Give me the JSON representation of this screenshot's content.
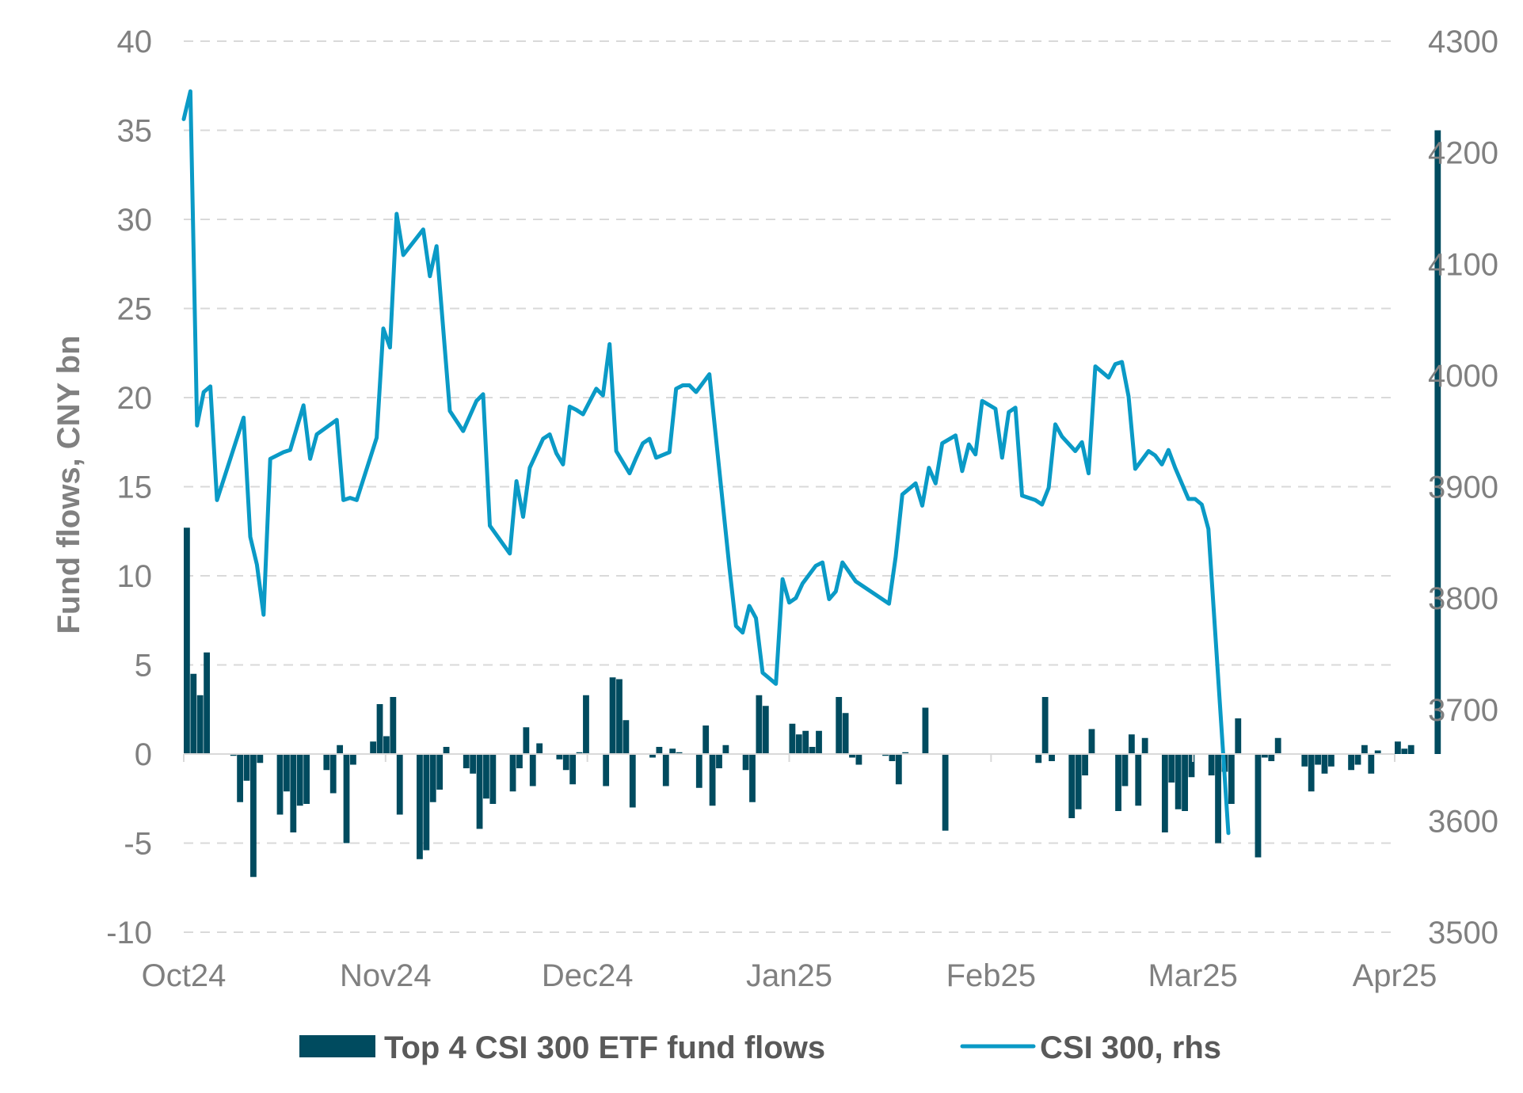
{
  "chart_data": {
    "type": "bar+line",
    "title": "",
    "ylabel": "Fund flows, CNY bn",
    "ylim": [
      -10,
      40
    ],
    "yticks": [
      40,
      35,
      30,
      25,
      20,
      15,
      10,
      5,
      0,
      -5,
      -10
    ],
    "y2lim": [
      3500,
      4300
    ],
    "y2ticks": [
      4300,
      4200,
      4100,
      4000,
      3900,
      3800,
      3700,
      3600,
      3500
    ],
    "xlabels": [
      "Oct24",
      "Nov24",
      "Dec24",
      "Jan25",
      "Feb25",
      "Mar25",
      "Apr25"
    ],
    "x_start": "2024-10-01",
    "x_end": "2025-04-01",
    "legend_placement": "bottom",
    "grid": true,
    "colors": {
      "bars": "#004b5f",
      "line": "#0a9ac6",
      "grid": "#d9d9d9",
      "text": "#808080"
    },
    "series": [
      {
        "name": "Top 4 CSI 300 ETF fund flows",
        "type": "bar",
        "axis": "left",
        "points": [
          [
            0,
            12.7
          ],
          [
            1,
            4.5
          ],
          [
            2,
            3.3
          ],
          [
            3,
            5.7
          ],
          [
            7,
            -0.1
          ],
          [
            8,
            -2.7
          ],
          [
            9,
            -1.5
          ],
          [
            10,
            -6.9
          ],
          [
            11,
            -0.5
          ],
          [
            14,
            -3.4
          ],
          [
            15,
            -2.1
          ],
          [
            16,
            -4.4
          ],
          [
            17,
            -2.9
          ],
          [
            18,
            -2.8
          ],
          [
            21,
            -0.9
          ],
          [
            22,
            -2.2
          ],
          [
            23,
            0.5
          ],
          [
            24,
            -5.0
          ],
          [
            25,
            -0.6
          ],
          [
            28,
            0.7
          ],
          [
            29,
            2.8
          ],
          [
            30,
            1.0
          ],
          [
            31,
            3.2
          ],
          [
            32,
            -3.4
          ],
          [
            35,
            -5.9
          ],
          [
            36,
            -5.4
          ],
          [
            37,
            -2.7
          ],
          [
            38,
            -2.0
          ],
          [
            39,
            0.4
          ],
          [
            42,
            -0.8
          ],
          [
            43,
            -1.1
          ],
          [
            44,
            -4.2
          ],
          [
            45,
            -2.5
          ],
          [
            46,
            -2.8
          ],
          [
            49,
            -2.1
          ],
          [
            50,
            -0.8
          ],
          [
            51,
            1.5
          ],
          [
            52,
            -1.8
          ],
          [
            53,
            0.6
          ],
          [
            56,
            -0.3
          ],
          [
            57,
            -0.9
          ],
          [
            58,
            -1.7
          ],
          [
            59,
            0.1
          ],
          [
            60,
            3.3
          ],
          [
            63,
            -1.8
          ],
          [
            64,
            4.3
          ],
          [
            65,
            4.2
          ],
          [
            66,
            1.9
          ],
          [
            67,
            -3.0
          ],
          [
            70,
            -0.2
          ],
          [
            71,
            0.4
          ],
          [
            72,
            -1.8
          ],
          [
            73,
            0.3
          ],
          [
            74,
            0.1
          ],
          [
            77,
            -1.9
          ],
          [
            78,
            1.6
          ],
          [
            79,
            -2.9
          ],
          [
            80,
            -0.8
          ],
          [
            81,
            0.5
          ],
          [
            84,
            -0.9
          ],
          [
            85,
            -2.7
          ],
          [
            86,
            3.3
          ],
          [
            87,
            2.7
          ],
          [
            91,
            1.7
          ],
          [
            92,
            1.1
          ],
          [
            93,
            1.3
          ],
          [
            94,
            0.4
          ],
          [
            95,
            1.3
          ],
          [
            98,
            3.2
          ],
          [
            99,
            2.3
          ],
          [
            100,
            -0.2
          ],
          [
            101,
            -0.6
          ],
          [
            105,
            -0.1
          ],
          [
            106,
            -0.4
          ],
          [
            107,
            -1.7
          ],
          [
            108,
            0.1
          ],
          [
            111,
            2.6
          ],
          [
            114,
            -4.3
          ],
          [
            128,
            -0.5
          ],
          [
            129,
            3.2
          ],
          [
            130,
            -0.4
          ],
          [
            133,
            -3.6
          ],
          [
            134,
            -3.1
          ],
          [
            135,
            -1.2
          ],
          [
            136,
            1.4
          ],
          [
            140,
            -3.2
          ],
          [
            141,
            -1.8
          ],
          [
            142,
            1.1
          ],
          [
            143,
            -2.9
          ],
          [
            144,
            0.9
          ],
          [
            147,
            -4.4
          ],
          [
            148,
            -1.6
          ],
          [
            149,
            -3.1
          ],
          [
            150,
            -3.2
          ],
          [
            151,
            -1.3
          ],
          [
            154,
            -1.2
          ],
          [
            155,
            -5.0
          ],
          [
            156,
            -1.0
          ],
          [
            157,
            -2.8
          ],
          [
            158,
            2.0
          ],
          [
            161,
            -5.8
          ],
          [
            162,
            -0.2
          ],
          [
            163,
            -0.4
          ],
          [
            164,
            0.9
          ],
          [
            168,
            -0.7
          ],
          [
            169,
            -2.1
          ],
          [
            170,
            -0.6
          ],
          [
            171,
            -1.1
          ],
          [
            172,
            -0.7
          ],
          [
            175,
            -0.9
          ],
          [
            176,
            -0.6
          ],
          [
            177,
            0.5
          ],
          [
            178,
            -1.1
          ],
          [
            179,
            0.2
          ],
          [
            182,
            0.7
          ],
          [
            183,
            0.3
          ],
          [
            184,
            0.5
          ],
          [
            188,
            35.0
          ]
        ]
      },
      {
        "name": "CSI 300, rhs",
        "type": "line",
        "axis": "right",
        "points": [
          [
            0,
            4230
          ],
          [
            1,
            4255
          ],
          [
            2,
            3955
          ],
          [
            3,
            3985
          ],
          [
            4,
            3990
          ],
          [
            5,
            3888
          ],
          [
            9,
            3962
          ],
          [
            10,
            3855
          ],
          [
            11,
            3830
          ],
          [
            12,
            3785
          ],
          [
            13,
            3925
          ],
          [
            15,
            3931
          ],
          [
            16,
            3933
          ],
          [
            17,
            3953
          ],
          [
            18,
            3973
          ],
          [
            19,
            3925
          ],
          [
            20,
            3947
          ],
          [
            23,
            3960
          ],
          [
            24,
            3888
          ],
          [
            25,
            3890
          ],
          [
            26,
            3888
          ],
          [
            29,
            3944
          ],
          [
            30,
            4042
          ],
          [
            31,
            4025
          ],
          [
            32,
            4145
          ],
          [
            33,
            4108
          ],
          [
            36,
            4131
          ],
          [
            37,
            4089
          ],
          [
            38,
            4116
          ],
          [
            40,
            3968
          ],
          [
            42,
            3950
          ],
          [
            44,
            3977
          ],
          [
            45,
            3983
          ],
          [
            46,
            3865
          ],
          [
            49,
            3840
          ],
          [
            50,
            3905
          ],
          [
            51,
            3873
          ],
          [
            52,
            3917
          ],
          [
            54,
            3943
          ],
          [
            55,
            3947
          ],
          [
            56,
            3930
          ],
          [
            57,
            3920
          ],
          [
            58,
            3972
          ],
          [
            59,
            3969
          ],
          [
            60,
            3965
          ],
          [
            62,
            3988
          ],
          [
            63,
            3982
          ],
          [
            64,
            4028
          ],
          [
            65,
            3932
          ],
          [
            67,
            3912
          ],
          [
            68,
            3926
          ],
          [
            69,
            3939
          ],
          [
            70,
            3943
          ],
          [
            71,
            3926
          ],
          [
            73,
            3931
          ],
          [
            74,
            3988
          ],
          [
            75,
            3991
          ],
          [
            76,
            3991
          ],
          [
            77,
            3985
          ],
          [
            79,
            4001
          ],
          [
            82,
            3828
          ],
          [
            83,
            3775
          ],
          [
            84,
            3769
          ],
          [
            85,
            3793
          ],
          [
            86,
            3782
          ],
          [
            87,
            3733
          ],
          [
            88,
            3728
          ],
          [
            89,
            3723
          ],
          [
            90,
            3817
          ],
          [
            91,
            3796
          ],
          [
            92,
            3800
          ],
          [
            93,
            3813
          ],
          [
            95,
            3829
          ],
          [
            96,
            3832
          ],
          [
            97,
            3799
          ],
          [
            98,
            3806
          ],
          [
            99,
            3832
          ],
          [
            101,
            3815
          ],
          [
            106,
            3795
          ],
          [
            107,
            3837
          ],
          [
            108,
            3893
          ],
          [
            110,
            3903
          ],
          [
            111,
            3883
          ],
          [
            112,
            3917
          ],
          [
            113,
            3903
          ],
          [
            114,
            3939
          ],
          [
            116,
            3946
          ],
          [
            117,
            3914
          ],
          [
            118,
            3938
          ],
          [
            119,
            3929
          ],
          [
            120,
            3977
          ],
          [
            122,
            3970
          ],
          [
            123,
            3926
          ],
          [
            124,
            3967
          ],
          [
            125,
            3971
          ],
          [
            126,
            3892
          ],
          [
            128,
            3888
          ],
          [
            129,
            3884
          ],
          [
            130,
            3899
          ],
          [
            131,
            3956
          ],
          [
            132,
            3945
          ],
          [
            134,
            3932
          ],
          [
            135,
            3940
          ],
          [
            136,
            3912
          ],
          [
            137,
            4008
          ],
          [
            139,
            3998
          ],
          [
            140,
            4010
          ],
          [
            141,
            4012
          ],
          [
            142,
            3981
          ],
          [
            143,
            3916
          ],
          [
            145,
            3932
          ],
          [
            146,
            3928
          ],
          [
            147,
            3920
          ],
          [
            148,
            3933
          ],
          [
            149,
            3917
          ],
          [
            151,
            3889
          ],
          [
            152,
            3889
          ],
          [
            153,
            3884
          ],
          [
            154,
            3862
          ],
          [
            157,
            3589
          ]
        ]
      }
    ]
  }
}
